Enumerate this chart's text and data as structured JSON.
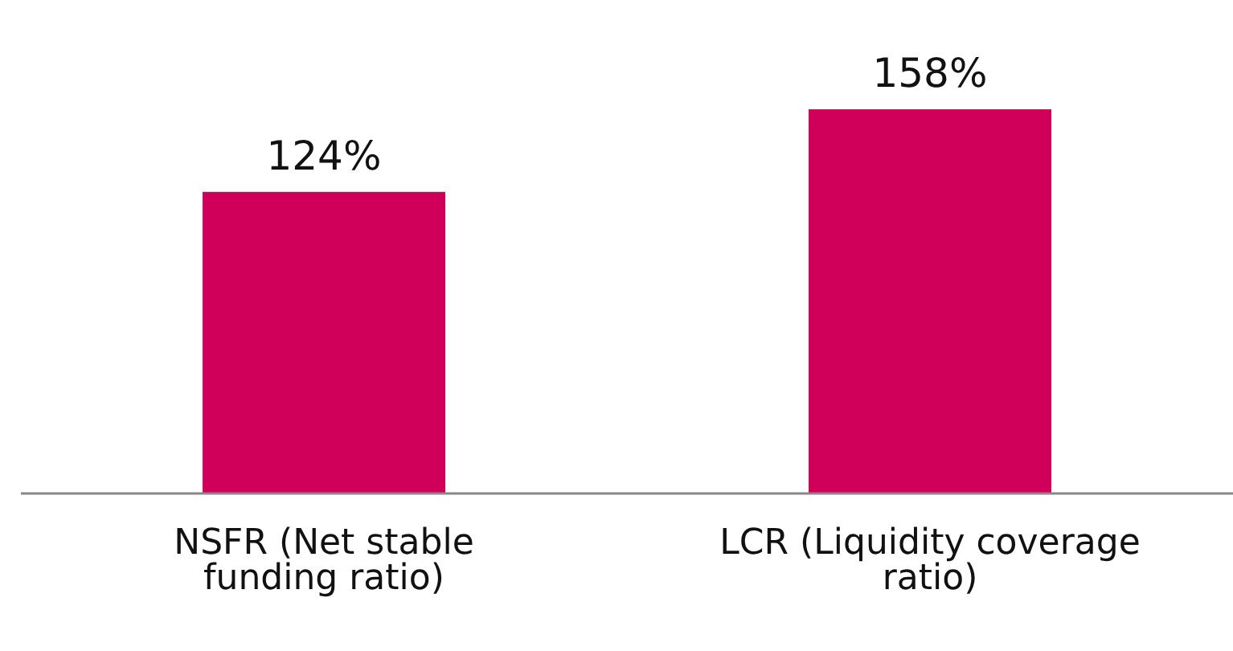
{
  "chart_data": {
    "type": "bar",
    "categories": [
      "NSFR (Net stable funding ratio)",
      "LCR (Liquidity coverage ratio)"
    ],
    "values": [
      124,
      158
    ],
    "value_labels": [
      "124%",
      "158%"
    ],
    "color": "#d0005a"
  }
}
